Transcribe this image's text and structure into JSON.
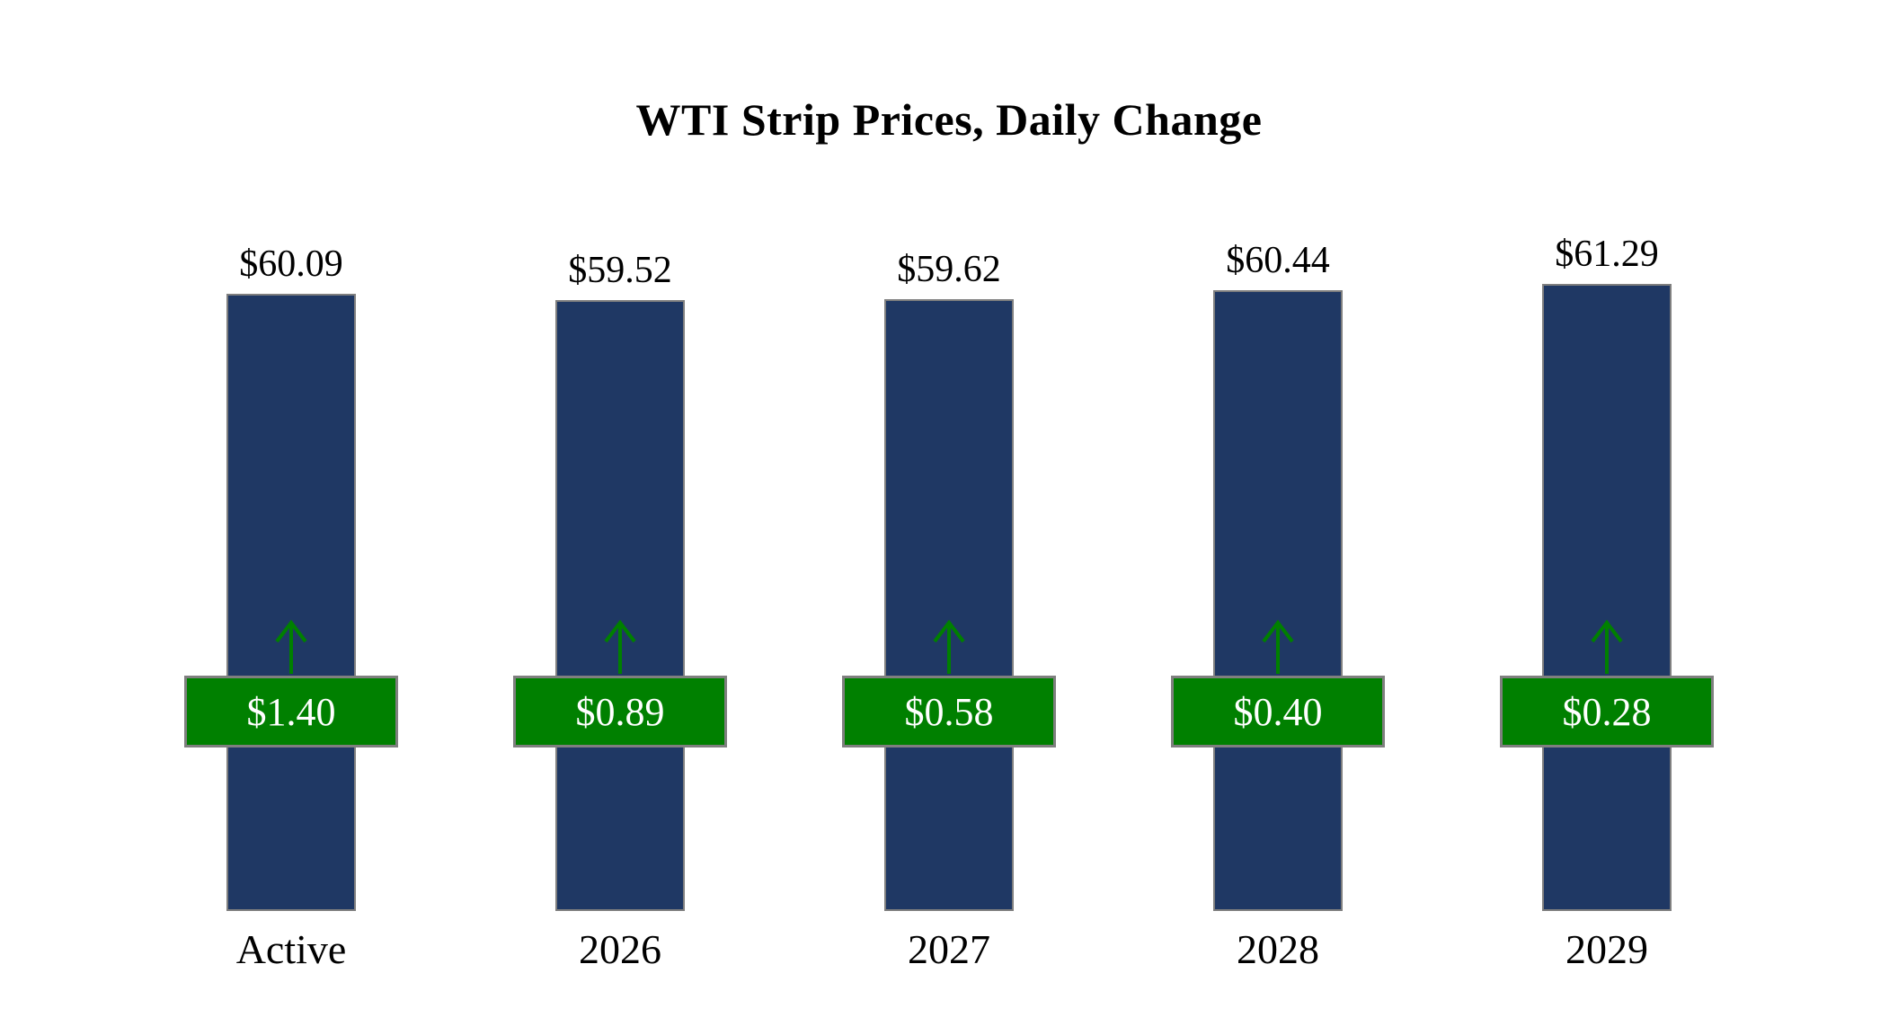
{
  "title": "WTI Strip Prices, Daily Change",
  "chart_data": {
    "type": "bar",
    "title": "WTI Strip Prices, Daily Change",
    "categories": [
      "Active",
      "2026",
      "2027",
      "2028",
      "2029"
    ],
    "series": [
      {
        "name": "WTI Strip Price",
        "values": [
          60.09,
          59.52,
          59.62,
          60.44,
          61.29
        ]
      },
      {
        "name": "Daily Change",
        "values": [
          1.4,
          0.89,
          0.58,
          0.4,
          0.28
        ]
      }
    ],
    "labels": {
      "prices": [
        "$60.09",
        "$59.52",
        "$59.62",
        "$60.44",
        "$61.29"
      ],
      "changes": [
        "$1.40",
        "$0.89",
        "$0.58",
        "$0.40",
        "$0.28"
      ]
    },
    "change_direction": "up",
    "legend": false,
    "grid": false,
    "axes_visible": false,
    "colors": {
      "background": "#FFFFFF",
      "bar_fill": "#1F3864",
      "bar_border": "#7F7F7F",
      "badge_fill": "#008000",
      "badge_border": "#7F7F7F",
      "badge_text": "#FFFFFF",
      "arrow": "#008000",
      "text": "#000000"
    }
  }
}
